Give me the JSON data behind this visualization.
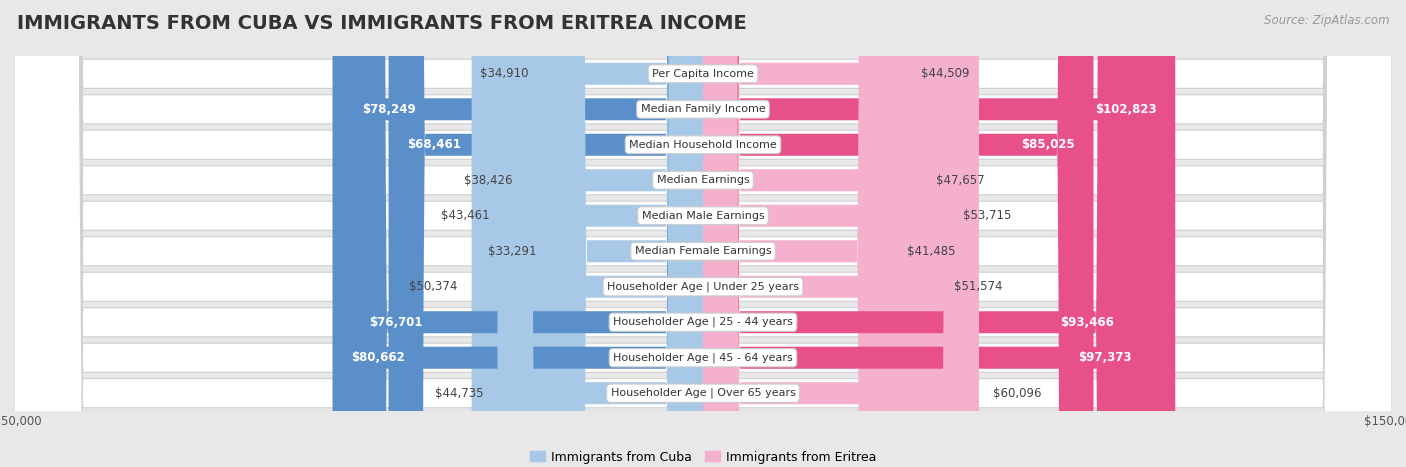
{
  "title": "IMMIGRANTS FROM CUBA VS IMMIGRANTS FROM ERITREA INCOME",
  "source": "Source: ZipAtlas.com",
  "categories": [
    "Per Capita Income",
    "Median Family Income",
    "Median Household Income",
    "Median Earnings",
    "Median Male Earnings",
    "Median Female Earnings",
    "Householder Age | Under 25 years",
    "Householder Age | 25 - 44 years",
    "Householder Age | 45 - 64 years",
    "Householder Age | Over 65 years"
  ],
  "cuba_values": [
    34910,
    78249,
    68461,
    38426,
    43461,
    33291,
    50374,
    76701,
    80662,
    44735
  ],
  "eritrea_values": [
    44509,
    102823,
    85025,
    47657,
    53715,
    41485,
    51574,
    93466,
    97373,
    60096
  ],
  "cuba_labels": [
    "$34,910",
    "$78,249",
    "$68,461",
    "$38,426",
    "$43,461",
    "$33,291",
    "$50,374",
    "$76,701",
    "$80,662",
    "$44,735"
  ],
  "eritrea_labels": [
    "$44,509",
    "$102,823",
    "$85,025",
    "$47,657",
    "$53,715",
    "$41,485",
    "$51,574",
    "$93,466",
    "$97,373",
    "$60,096"
  ],
  "cuba_color_light": "#a8c8e8",
  "cuba_color_dark": "#5b8fca",
  "eritrea_color_light": "#f4b0cc",
  "eritrea_color_dark": "#e8508a",
  "max_value": 150000,
  "bar_height": 0.62,
  "background_color": "#e8e8e8",
  "row_bg_color": "#f2f2f2",
  "title_fontsize": 14,
  "label_fontsize": 8.5,
  "category_fontsize": 8.0,
  "legend_fontsize": 9,
  "source_fontsize": 8.5,
  "cuba_threshold": 60000,
  "eritrea_threshold": 80000
}
